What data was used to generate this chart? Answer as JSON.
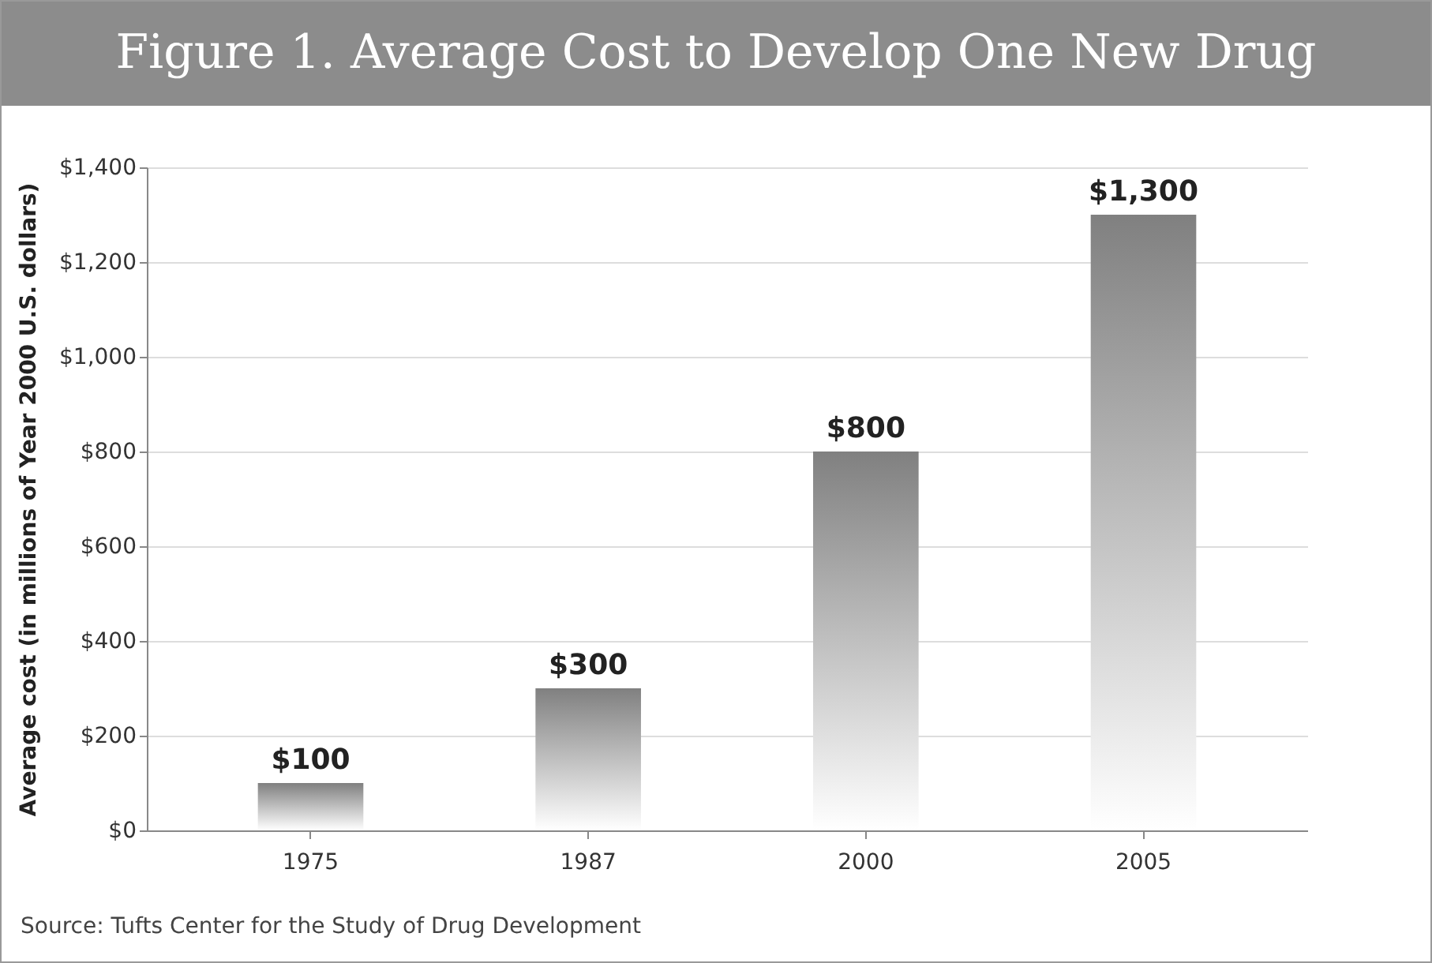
{
  "chart_data": {
    "type": "bar",
    "title": "Figure 1. Average Cost to Develop One New Drug",
    "ylabel": "Average cost (in millions of Year 2000 U.S. dollars)",
    "categories": [
      "1975",
      "1987",
      "2000",
      "2005"
    ],
    "values": [
      100,
      300,
      800,
      1300
    ],
    "value_labels": [
      "$100",
      "$300",
      "$800",
      "$1,300"
    ],
    "color": "#808080",
    "ylim": [
      0,
      1400
    ],
    "yticks": [
      {
        "value": 0,
        "label": "$0"
      },
      {
        "value": 200,
        "label": "$200"
      },
      {
        "value": 400,
        "label": "$400"
      },
      {
        "value": 600,
        "label": "$600"
      },
      {
        "value": 800,
        "label": "$800"
      },
      {
        "value": 1000,
        "label": "$1,000"
      },
      {
        "value": 1200,
        "label": "$1,200"
      },
      {
        "value": 1400,
        "label": "$1,400"
      }
    ],
    "grid": "y",
    "annotations": [
      "Source: Tufts Center for the Study of Drug Development"
    ]
  }
}
